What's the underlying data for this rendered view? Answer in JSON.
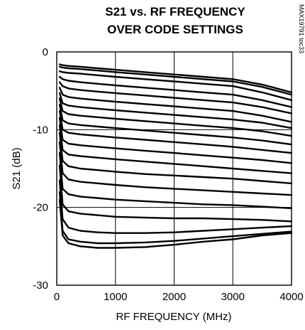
{
  "chart_data": {
    "type": "line",
    "title": [
      "S21 vs. RF FREQUENCY",
      "OVER CODE SETTINGS"
    ],
    "xlabel": "RF FREQUENCY (MHz)",
    "ylabel": "S21 (dB)",
    "xlim": [
      0,
      4000
    ],
    "ylim": [
      -30,
      0
    ],
    "xticks": [
      0,
      1000,
      2000,
      3000,
      4000
    ],
    "yticks": [
      0,
      -10,
      -20,
      -30
    ],
    "grid": true,
    "side_label": "MAX19791 toc33",
    "x": [
      50,
      100,
      200,
      400,
      700,
      1000,
      1500,
      2000,
      2500,
      3000,
      3500,
      4000
    ],
    "series": [
      {
        "values": [
          -1.6,
          -1.7,
          -1.8,
          -1.9,
          -2.1,
          -2.3,
          -2.6,
          -2.9,
          -3.2,
          -3.5,
          -4.2,
          -5.2
        ]
      },
      {
        "values": [
          -1.9,
          -2.0,
          -2.1,
          -2.2,
          -2.4,
          -2.6,
          -2.9,
          -3.2,
          -3.5,
          -3.8,
          -4.5,
          -5.5
        ]
      },
      {
        "values": [
          -2.5,
          -2.6,
          -2.7,
          -2.8,
          -3.0,
          -3.2,
          -3.5,
          -3.8,
          -4.1,
          -4.4,
          -5.2,
          -6.2
        ]
      },
      {
        "values": [
          -3.2,
          -3.5,
          -3.7,
          -3.9,
          -4.1,
          -4.3,
          -4.6,
          -4.9,
          -5.2,
          -5.5,
          -6.2,
          -7.1
        ]
      },
      {
        "values": [
          -3.9,
          -4.4,
          -4.7,
          -4.9,
          -5.1,
          -5.3,
          -5.6,
          -5.9,
          -6.2,
          -6.5,
          -7.1,
          -7.9
        ]
      },
      {
        "values": [
          -4.6,
          -5.5,
          -5.8,
          -6.0,
          -6.2,
          -6.4,
          -6.7,
          -7.0,
          -7.3,
          -7.6,
          -8.2,
          -9.0
        ]
      },
      {
        "values": [
          -5.3,
          -6.6,
          -6.9,
          -7.1,
          -7.3,
          -7.5,
          -7.8,
          -8.1,
          -8.4,
          -8.7,
          -9.1,
          -9.8
        ]
      },
      {
        "values": [
          -6.0,
          -7.6,
          -8.0,
          -8.2,
          -8.4,
          -8.6,
          -8.9,
          -9.2,
          -9.5,
          -9.8,
          -10.2,
          -10.8
        ]
      },
      {
        "values": [
          -6.8,
          -8.8,
          -9.2,
          -9.4,
          -9.6,
          -9.8,
          -10.1,
          -10.4,
          -10.7,
          -11.0,
          -11.4,
          -11.9
        ]
      },
      {
        "values": [
          -7.6,
          -10.0,
          -10.4,
          -10.6,
          -10.8,
          -11.0,
          -11.3,
          -11.6,
          -11.9,
          -12.2,
          -12.6,
          -13.0
        ]
      },
      {
        "values": [
          -8.5,
          -11.3,
          -11.8,
          -12.0,
          -12.2,
          -12.4,
          -12.7,
          -13.0,
          -13.3,
          -13.6,
          -13.9,
          -14.3
        ]
      },
      {
        "values": [
          -9.4,
          -12.6,
          -13.2,
          -13.4,
          -13.6,
          -13.8,
          -14.1,
          -14.4,
          -14.7,
          -15.0,
          -15.3,
          -15.6
        ]
      },
      {
        "values": [
          -10.4,
          -14.0,
          -14.7,
          -15.0,
          -15.2,
          -15.4,
          -15.7,
          -15.9,
          -16.1,
          -16.3,
          -16.6,
          -16.9
        ]
      },
      {
        "values": [
          -11.6,
          -15.6,
          -16.4,
          -16.7,
          -16.9,
          -17.1,
          -17.4,
          -17.6,
          -17.8,
          -18.0,
          -18.2,
          -18.4
        ]
      },
      {
        "values": [
          -13.0,
          -17.6,
          -18.3,
          -18.6,
          -18.8,
          -19.0,
          -19.2,
          -19.4,
          -19.6,
          -19.7,
          -19.9,
          -20.1
        ]
      },
      {
        "values": [
          -14.6,
          -19.6,
          -20.5,
          -20.8,
          -21.0,
          -21.2,
          -21.3,
          -21.4,
          -21.4,
          -21.5,
          -21.6,
          -21.8
        ]
      },
      {
        "values": [
          -16.5,
          -21.5,
          -22.6,
          -23.0,
          -23.2,
          -23.3,
          -23.3,
          -23.2,
          -23.0,
          -22.8,
          -22.6,
          -22.4
        ]
      },
      {
        "values": [
          -18.0,
          -23.0,
          -24.1,
          -24.4,
          -24.6,
          -24.6,
          -24.5,
          -24.3,
          -24.0,
          -23.7,
          -23.4,
          -23.1
        ]
      },
      {
        "values": [
          -19.0,
          -23.6,
          -24.6,
          -25.0,
          -25.2,
          -25.2,
          -25.1,
          -24.8,
          -24.4,
          -24.1,
          -23.6,
          -23.3
        ]
      }
    ]
  }
}
